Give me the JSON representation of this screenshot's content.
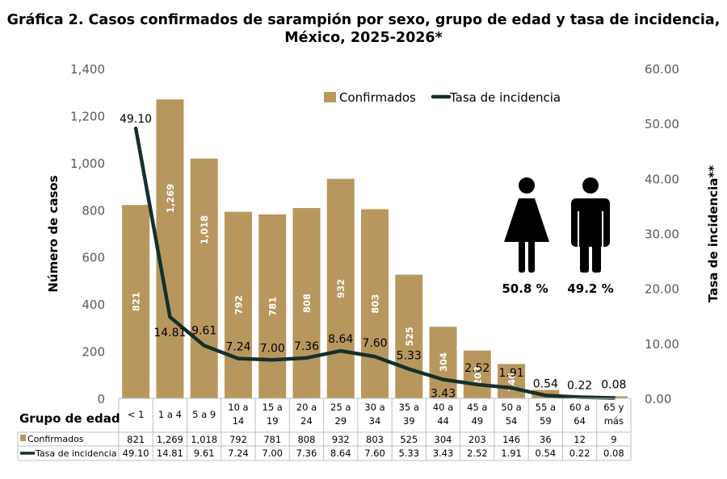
{
  "title_line1": "Gráfica 2. Casos confirmados de sarampión por sexo, grupo de edad y tasa de incidencia,",
  "title_line2": "México, 2025-2026*",
  "chart_data": {
    "type": "bar",
    "categories": [
      "< 1",
      "1 a 4",
      "5 a 9",
      "10 a 14",
      "15 a 19",
      "20 a 24",
      "25 a 29",
      "30 a 34",
      "35 a 39",
      "40 a 44",
      "45 a 49",
      "50 a 54",
      "55 a 59",
      "60 a 64",
      "65 y más"
    ],
    "categories_display": [
      [
        "< 1"
      ],
      [
        "1 a 4"
      ],
      [
        "5 a 9"
      ],
      [
        "10 a",
        "14"
      ],
      [
        "15 a",
        "19"
      ],
      [
        "20 a",
        "24"
      ],
      [
        "25 a",
        "29"
      ],
      [
        "30 a",
        "34"
      ],
      [
        "35 a",
        "39"
      ],
      [
        "40 a",
        "44"
      ],
      [
        "45 a",
        "49"
      ],
      [
        "50 a",
        "54"
      ],
      [
        "55 a",
        "59"
      ],
      [
        "60 a",
        "64"
      ],
      [
        "65 y",
        "más"
      ]
    ],
    "series": [
      {
        "name": "Confirmados",
        "type": "bar",
        "axis": "left",
        "color": "#b8975f",
        "values": [
          821,
          1269,
          1018,
          792,
          781,
          808,
          932,
          803,
          525,
          304,
          203,
          146,
          36,
          12,
          9
        ],
        "display": [
          "821",
          "1,269",
          "1,018",
          "792",
          "781",
          "808",
          "932",
          "803",
          "525",
          "304",
          "203",
          "146",
          "36",
          "12",
          "9"
        ]
      },
      {
        "name": "Tasa de incidencia",
        "type": "line",
        "axis": "right",
        "color": "#14302a",
        "values": [
          49.1,
          14.81,
          9.61,
          7.24,
          7.0,
          7.36,
          8.64,
          7.6,
          5.33,
          3.43,
          2.52,
          1.91,
          0.54,
          0.22,
          0.08
        ],
        "display": [
          "49.10",
          "14.81",
          "9.61",
          "7.24",
          "7.00",
          "7.36",
          "8.64",
          "7.60",
          "5.33",
          "3.43",
          "2.52",
          "1.91",
          "0.54",
          "0.22",
          "0.08"
        ]
      }
    ],
    "bar_labels_inside_from": 0,
    "bar_labels_inside_to": 11,
    "ylabel": "Número de casos",
    "ylabel_right": "Tasa de incidencia**",
    "ylim": [
      0,
      1400
    ],
    "ylim_right": [
      0,
      60
    ],
    "yticks": [
      "0",
      "200",
      "400",
      "600",
      "800",
      "1,000",
      "1,200",
      "1,400"
    ],
    "yticks_right": [
      "0.00",
      "10.00",
      "20.00",
      "30.00",
      "40.00",
      "50.00",
      "60.00"
    ],
    "xlabel": "Grupo de edad",
    "legend": {
      "position": "top",
      "items": [
        "Confirmados",
        "Tasa de incidencia"
      ]
    },
    "table_rows": [
      "Confirmados",
      "Tasa de incidencia"
    ],
    "grid": false,
    "sex": {
      "female": {
        "icon": "woman-icon",
        "pct": "50.8 %"
      },
      "male": {
        "icon": "man-icon",
        "pct": "49.2 %"
      }
    }
  }
}
